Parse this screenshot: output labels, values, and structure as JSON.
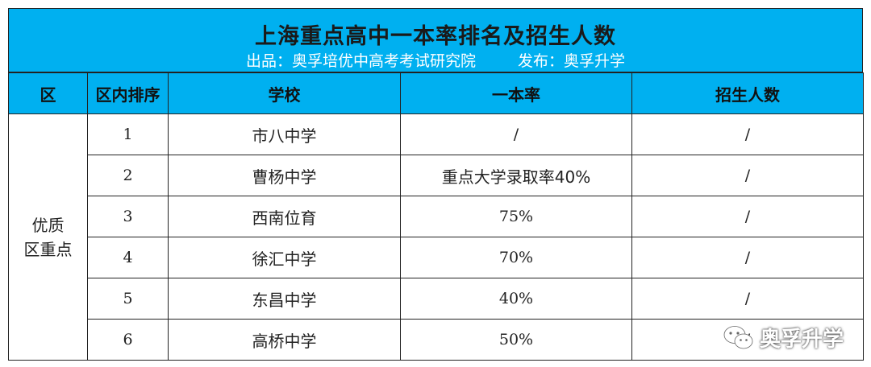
{
  "header": {
    "title": "上海重点高中一本率排名及招生人数",
    "producer": "出品：奥孚培优中高考考试研究院",
    "publisher": "发布：奥孚升学"
  },
  "table": {
    "columns": [
      "区",
      "区内排序",
      "学校",
      "一本率",
      "招生人数"
    ],
    "region": {
      "line1": "优质",
      "line2": "区重点"
    },
    "rows": [
      {
        "rank": "1",
        "school": "市八中学",
        "rate": "/",
        "enroll": "/"
      },
      {
        "rank": "2",
        "school": "曹杨中学",
        "rate": "重点大学录取率40%",
        "enroll": "/"
      },
      {
        "rank": "3",
        "school": "西南位育",
        "rate": "75%",
        "enroll": "/"
      },
      {
        "rank": "4",
        "school": "徐汇中学",
        "rate": "70%",
        "enroll": "/"
      },
      {
        "rank": "5",
        "school": "东昌中学",
        "rate": "40%",
        "enroll": "/"
      },
      {
        "rank": "6",
        "school": "高桥中学",
        "rate": "50%",
        "enroll": "/"
      }
    ]
  },
  "watermark": {
    "text": "奥孚升学",
    "icon": "wechat-icon"
  },
  "colors": {
    "header_bg": "#00b0f0",
    "border": "#222222"
  }
}
